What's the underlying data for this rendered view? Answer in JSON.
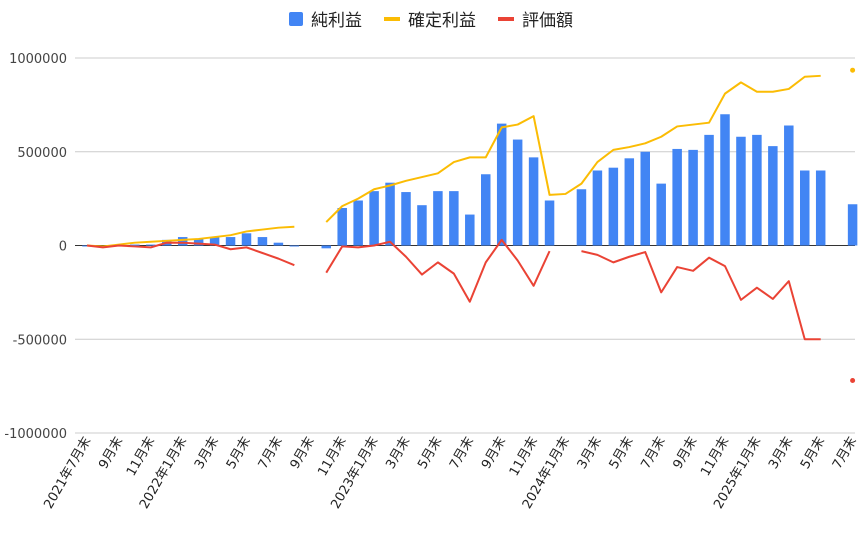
{
  "chart_data": {
    "type": "bar",
    "yticks": [
      "1000000",
      "500000",
      "0",
      "-500000",
      "-1000000"
    ],
    "ylim": [
      -1000000,
      1000000
    ],
    "categories": [
      "2021年7月末",
      "",
      "9月末",
      "",
      "11月末",
      "",
      "2022年1月末",
      "",
      "3月末",
      "",
      "5月末",
      "",
      "7月末",
      "",
      "9月末",
      "",
      "11月末",
      "",
      "2023年1月末",
      "",
      "3月末",
      "",
      "5月末",
      "",
      "7月末",
      "",
      "9月末",
      "",
      "11月末",
      "",
      "2024年1月末",
      "",
      "3月末",
      "",
      "5月末",
      "",
      "7月末",
      "",
      "9月末",
      "",
      "11月末",
      "",
      "2025年1月末",
      "",
      "3月末",
      "",
      "5月末",
      "",
      "7月末"
    ],
    "series": [
      {
        "name": "純利益",
        "kind": "bar",
        "color": "#4285f4",
        "values": [
          0,
          -5000,
          5000,
          5000,
          5000,
          30000,
          45000,
          35000,
          45000,
          45000,
          65000,
          45000,
          15000,
          -5000,
          null,
          -15000,
          200000,
          240000,
          290000,
          335000,
          285000,
          215000,
          290000,
          290000,
          165000,
          380000,
          650000,
          565000,
          470000,
          240000,
          null,
          300000,
          400000,
          415000,
          465000,
          500000,
          330000,
          515000,
          510000,
          590000,
          700000,
          580000,
          590000,
          530000,
          640000,
          400000,
          400000,
          null,
          220000
        ]
      },
      {
        "name": "確定利益",
        "kind": "line",
        "color": "#fbbc04",
        "values": [
          0,
          -5000,
          5000,
          15000,
          20000,
          25000,
          30000,
          35000,
          45000,
          55000,
          75000,
          85000,
          95000,
          100000,
          null,
          125000,
          210000,
          250000,
          300000,
          320000,
          345000,
          365000,
          385000,
          445000,
          470000,
          470000,
          630000,
          645000,
          690000,
          270000,
          275000,
          330000,
          445000,
          510000,
          525000,
          545000,
          580000,
          635000,
          645000,
          655000,
          810000,
          870000,
          820000,
          820000,
          835000,
          900000,
          905000,
          null,
          935000
        ]
      },
      {
        "name": "評価額",
        "kind": "line",
        "color": "#ea4335",
        "values": [
          0,
          -10000,
          0,
          -5000,
          -10000,
          15000,
          15000,
          10000,
          5000,
          -20000,
          -10000,
          -40000,
          -70000,
          -105000,
          null,
          -145000,
          -5000,
          -10000,
          0,
          20000,
          -60000,
          -155000,
          -90000,
          -150000,
          -300000,
          -90000,
          30000,
          -80000,
          -215000,
          -30000,
          null,
          -30000,
          -50000,
          -90000,
          -60000,
          -35000,
          -250000,
          -115000,
          -135000,
          -65000,
          -110000,
          -290000,
          -225000,
          -285000,
          -190000,
          -500000,
          -500000,
          null,
          -720000
        ]
      }
    ]
  }
}
